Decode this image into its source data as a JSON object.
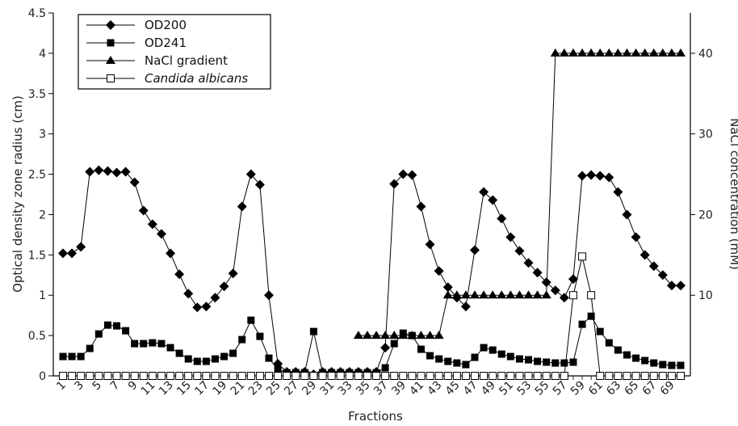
{
  "chart_data": {
    "type": "line",
    "xlabel": "Fractions",
    "ylabel": "Optical density zone radius (cm)",
    "y2label": "NaCl concentration (mM)",
    "x_tick_labels": [
      "1",
      "3",
      "5",
      "7",
      "9",
      "11",
      "13",
      "15",
      "17",
      "19",
      "21",
      "23",
      "25",
      "27",
      "29",
      "31",
      "33",
      "35",
      "37",
      "39",
      "41",
      "43",
      "45",
      "47",
      "49",
      "51",
      "53",
      "55",
      "57",
      "59",
      "61",
      "63",
      "65",
      "67",
      "69"
    ],
    "y_tick_labels": [
      "0",
      "0.5",
      "1",
      "1.5",
      "2",
      "2.5",
      "3",
      "3.5",
      "4",
      "4.5"
    ],
    "y2_tick_labels": [
      "10",
      "20",
      "30",
      "40"
    ],
    "xlim": [
      1,
      70
    ],
    "ylim": [
      0,
      4.5
    ],
    "y2lim": [
      0,
      45
    ],
    "grid": false,
    "legend_position": "top-left",
    "x": [
      1,
      2,
      3,
      4,
      5,
      6,
      7,
      8,
      9,
      10,
      11,
      12,
      13,
      14,
      15,
      16,
      17,
      18,
      19,
      20,
      21,
      22,
      23,
      24,
      25,
      26,
      27,
      28,
      29,
      30,
      31,
      32,
      33,
      34,
      35,
      36,
      37,
      38,
      39,
      40,
      41,
      42,
      43,
      44,
      45,
      46,
      47,
      48,
      49,
      50,
      51,
      52,
      53,
      54,
      55,
      56,
      57,
      58,
      59,
      60,
      61,
      62,
      63,
      64,
      65,
      66,
      67,
      68,
      69,
      70
    ],
    "series": [
      {
        "name": "OD200",
        "axis": "left",
        "marker": "diamond",
        "values": [
          1.52,
          1.52,
          1.6,
          2.53,
          2.55,
          2.54,
          2.52,
          2.53,
          2.4,
          2.05,
          1.88,
          1.76,
          1.52,
          1.26,
          1.02,
          0.85,
          0.86,
          0.97,
          1.11,
          1.27,
          2.1,
          2.5,
          2.37,
          1.0,
          0.15,
          0.05,
          0.05,
          0.05,
          0.02,
          0.05,
          0.05,
          0.05,
          0.05,
          0.05,
          0.05,
          0.05,
          0.35,
          2.38,
          2.5,
          2.49,
          2.1,
          1.63,
          1.3,
          1.1,
          0.97,
          0.86,
          1.56,
          2.28,
          2.18,
          1.95,
          1.72,
          1.55,
          1.4,
          1.28,
          1.16,
          1.06,
          0.97,
          1.2,
          2.48,
          2.49,
          2.48,
          2.46,
          2.28,
          2.0,
          1.72,
          1.5,
          1.36,
          1.25,
          1.12,
          1.12
        ]
      },
      {
        "name": "OD241",
        "axis": "left",
        "marker": "square-filled",
        "values": [
          0.24,
          0.24,
          0.24,
          0.34,
          0.52,
          0.63,
          0.62,
          0.56,
          0.4,
          0.4,
          0.41,
          0.4,
          0.35,
          0.28,
          0.21,
          0.18,
          0.18,
          0.21,
          0.24,
          0.28,
          0.45,
          0.69,
          0.49,
          0.22,
          0.08,
          0.04,
          0.04,
          0.04,
          0.55,
          0.04,
          0.04,
          0.04,
          0.04,
          0.04,
          0.04,
          0.04,
          0.1,
          0.4,
          0.53,
          0.5,
          0.33,
          0.25,
          0.21,
          0.18,
          0.16,
          0.14,
          0.23,
          0.35,
          0.32,
          0.27,
          0.24,
          0.21,
          0.2,
          0.18,
          0.17,
          0.16,
          0.16,
          0.17,
          0.64,
          0.74,
          0.55,
          0.41,
          0.32,
          0.26,
          0.22,
          0.19,
          0.16,
          0.14,
          0.13,
          0.13
        ]
      },
      {
        "name": "NaCl gradient",
        "axis": "right",
        "marker": "triangle-filled",
        "values": [
          null,
          null,
          null,
          null,
          null,
          null,
          null,
          null,
          null,
          null,
          null,
          null,
          null,
          null,
          null,
          null,
          null,
          null,
          null,
          null,
          null,
          null,
          null,
          null,
          null,
          null,
          null,
          null,
          0,
          null,
          null,
          null,
          null,
          5,
          5,
          5,
          5,
          5,
          5,
          5,
          5,
          5,
          5,
          10,
          10,
          10,
          10,
          10,
          10,
          10,
          10,
          10,
          10,
          10,
          10,
          40,
          40,
          40,
          40,
          40,
          40,
          40,
          40,
          40,
          40,
          40,
          40,
          40,
          40,
          40
        ]
      },
      {
        "name": "Candida albicans",
        "axis": "left",
        "marker": "square-open",
        "values": [
          0,
          0,
          0,
          0,
          0,
          0,
          0,
          0,
          0,
          0,
          0,
          0,
          0,
          0,
          0,
          0,
          0,
          0,
          0,
          0,
          0,
          0,
          0,
          0,
          0,
          0,
          0,
          0,
          0,
          0,
          0,
          0,
          0,
          0,
          0,
          0,
          0,
          0,
          0,
          0,
          0,
          0,
          0,
          0,
          0,
          0,
          0,
          0,
          0,
          0,
          0,
          0,
          0,
          0,
          0,
          0,
          0,
          1.0,
          1.48,
          1.0,
          0,
          0,
          0,
          0,
          0,
          0,
          0,
          0,
          0,
          0
        ]
      }
    ]
  }
}
